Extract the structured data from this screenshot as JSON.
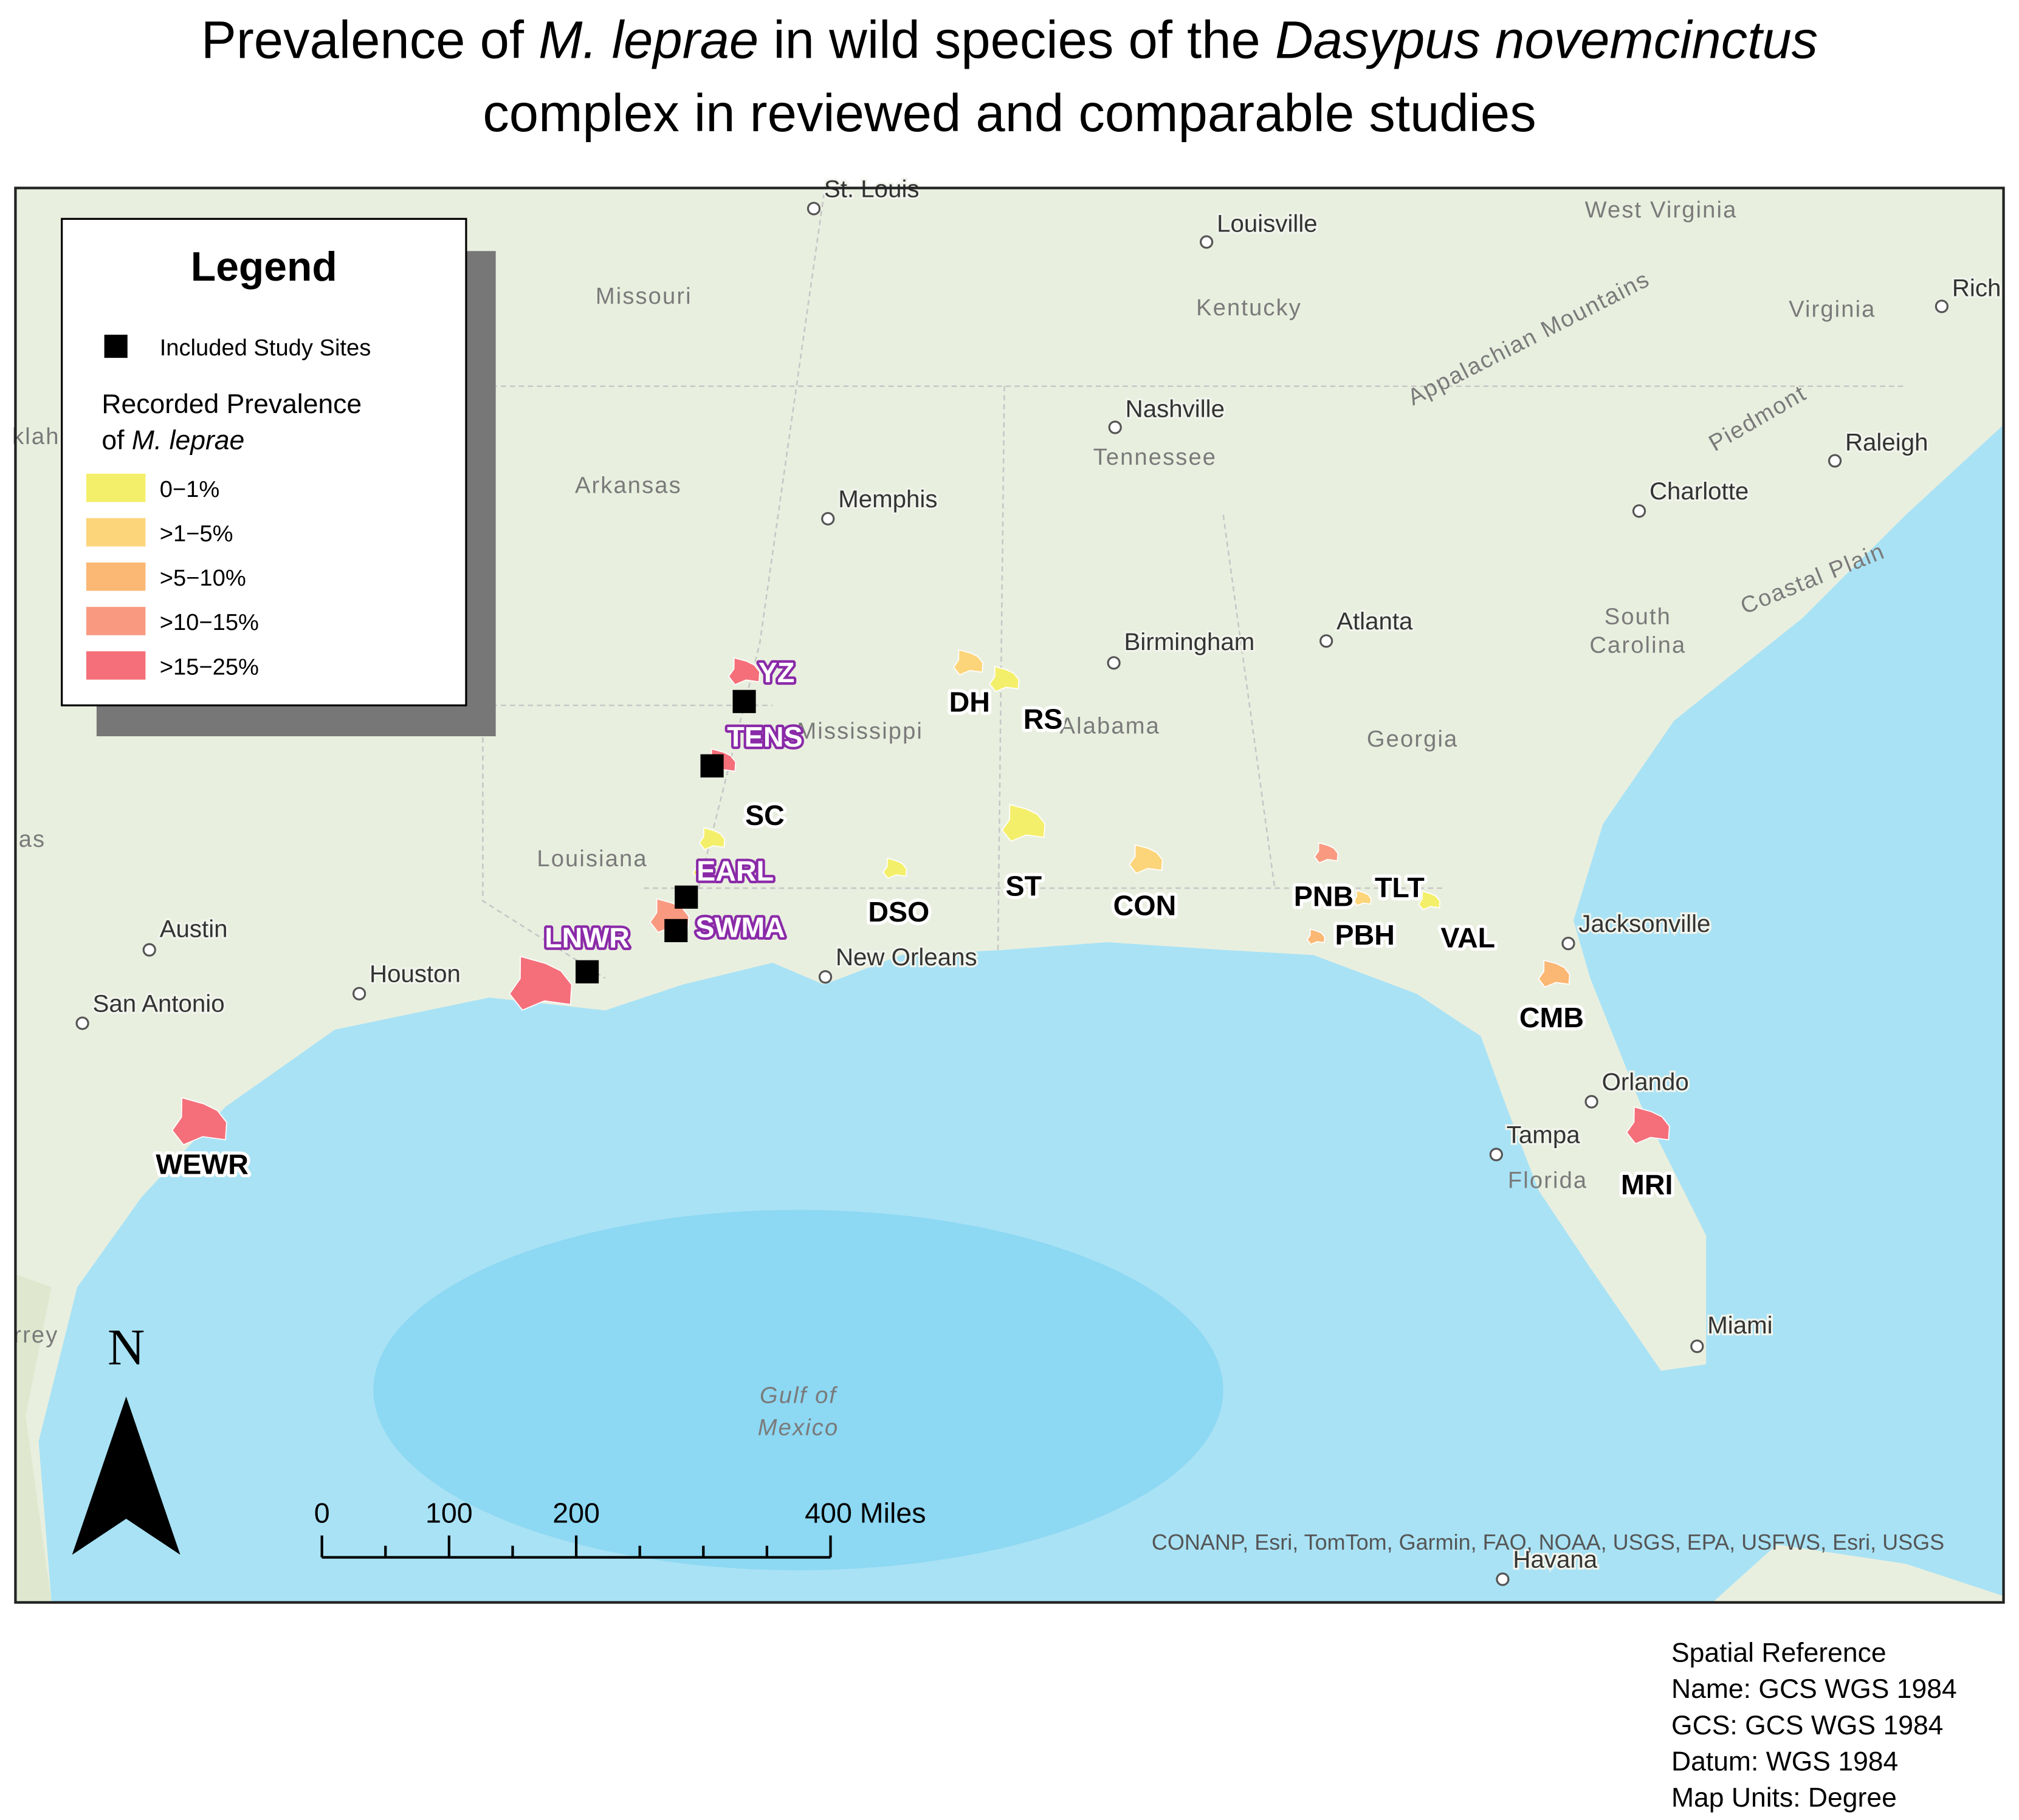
{
  "title": {
    "line1": [
      "Prevalence of ",
      "M. leprae",
      " in wild species of the ",
      "Dasypus novemcinctus"
    ],
    "line2": "complex in reviewed and comparable studies"
  },
  "legend": {
    "title": "Legend",
    "included": "Included Study Sites",
    "prevalence_heading": "Recorded Prevalence",
    "prevalence_of": "of ",
    "species": "M. leprae",
    "classes": [
      {
        "label": "0−1%",
        "color": "#f4ef6a"
      },
      {
        "label": ">1−5%",
        "color": "#fcd47a"
      },
      {
        "label": ">5−10%",
        "color": "#fbb774"
      },
      {
        "label": ">10−15%",
        "color": "#f99a80"
      },
      {
        "label": ">15−25%",
        "color": "#f46f7a"
      }
    ]
  },
  "sites": [
    {
      "label": "YZ",
      "color": "#f46f7a",
      "included": true
    },
    {
      "label": "TENS",
      "color": "#f46f7a",
      "included": true
    },
    {
      "label": "SC",
      "color": "#f4ef6a",
      "included": false
    },
    {
      "label": "EARL",
      "color": "#f4ef6a",
      "included": true
    },
    {
      "label": "SWMA",
      "color": "#f99a80",
      "included": true
    },
    {
      "label": "LNWR",
      "color": "#f46f7a",
      "included": true
    },
    {
      "label": "DH",
      "color": "#fcd47a",
      "included": false
    },
    {
      "label": "RS",
      "color": "#f4ef6a",
      "included": false
    },
    {
      "label": "DSO",
      "color": "#f4ef6a",
      "included": false
    },
    {
      "label": "ST",
      "color": "#f4ef6a",
      "included": false
    },
    {
      "label": "CON",
      "color": "#fcd47a",
      "included": false
    },
    {
      "label": "PNB",
      "color": "#f99a80",
      "included": false
    },
    {
      "label": "PBH",
      "color": "#fbb774",
      "included": false
    },
    {
      "label": "TLT",
      "color": "#fcd47a",
      "included": false
    },
    {
      "label": "VAL",
      "color": "#f4ef6a",
      "included": false
    },
    {
      "label": "CMB",
      "color": "#fbb774",
      "included": false
    },
    {
      "label": "MRI",
      "color": "#f46f7a",
      "included": false
    },
    {
      "label": "WEWR",
      "color": "#f46f7a",
      "included": false
    }
  ],
  "cities": [
    "St. Louis",
    "Louisville",
    "Nashville",
    "Memphis",
    "Birmingham",
    "Atlanta",
    "Charlotte",
    "Raleigh",
    "Rich",
    "Austin",
    "Houston",
    "San Antonio",
    "New Orleans",
    "Jacksonville",
    "Orlando",
    "Tampa",
    "Miami",
    "Havana"
  ],
  "regions": [
    "Missouri",
    "Kentucky",
    "West Virginia",
    "Virginia",
    "Tennessee",
    "Arkansas",
    "Mississippi",
    "Alabama",
    "Georgia",
    "South",
    "Carolina",
    "Louisiana",
    "Florida",
    "Appalachian Mountains",
    "Piedmont",
    "Coastal Plain",
    "Gulf of",
    "Mexico",
    "klah",
    "as",
    "rrey"
  ],
  "north": "N",
  "scale_bar": {
    "ticks": [
      0,
      100,
      200,
      {
        "value": 400,
        "label": "400 Miles"
      }
    ],
    "minor_ticks": [
      50,
      150,
      250,
      300,
      350
    ]
  },
  "attribution": "CONANP, Esri, TomTom, Garmin, FAO, NOAA, USGS, EPA, USFWS, Esri, USGS",
  "spatial_reference": [
    "Spatial Reference",
    "Name: GCS WGS 1984",
    "GCS: GCS WGS 1984",
    "Datum: WGS 1984",
    "Map Units: Degree"
  ]
}
